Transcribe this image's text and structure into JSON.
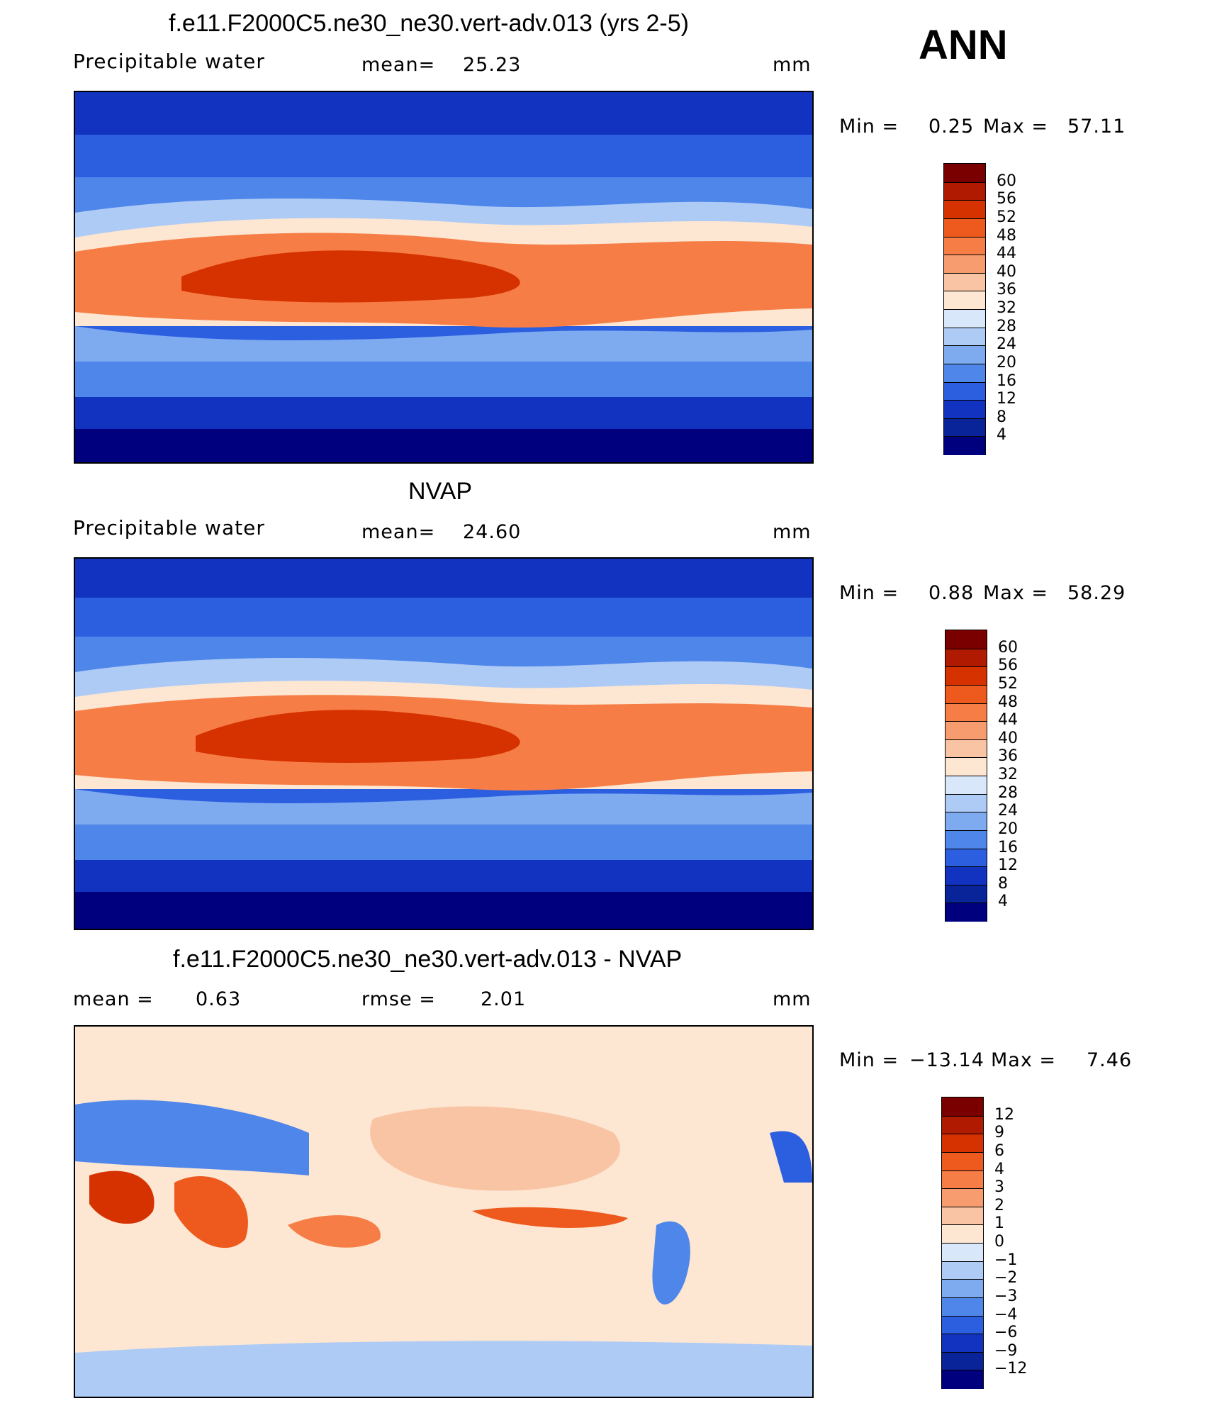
{
  "season": "ANN",
  "panels": [
    {
      "id": "model",
      "title": "f.e11.F2000C5.ne30_ne30.vert-adv.013 (yrs 2-5)",
      "left_label": "Precipitable  water",
      "stat_label": "mean=",
      "stat_value": "25.23",
      "unit": "mm",
      "min_label": "Min  =",
      "min_value": "0.25",
      "max_label": "Max  =",
      "max_value": "57.11",
      "colorbar": {
        "labels": [
          "60",
          "56",
          "52",
          "48",
          "44",
          "40",
          "36",
          "32",
          "28",
          "24",
          "20",
          "16",
          "12",
          "8",
          "4"
        ],
        "colors": [
          "#7a0000",
          "#b01a00",
          "#d63200",
          "#ee5a1e",
          "#f67e46",
          "#f79c6e",
          "#f9c4a4",
          "#fde6d2",
          "#d8e8fa",
          "#aecbf5",
          "#7eaaf0",
          "#4f86ea",
          "#2c5fe0",
          "#1232c0",
          "#082498",
          "#00007e"
        ]
      }
    },
    {
      "id": "obs",
      "title": "NVAP",
      "left_label": "Precipitable  water",
      "stat_label": "mean=",
      "stat_value": "24.60",
      "unit": "mm",
      "min_label": "Min  =",
      "min_value": "0.88",
      "max_label": "Max  =",
      "max_value": "58.29",
      "colorbar": {
        "labels": [
          "60",
          "56",
          "52",
          "48",
          "44",
          "40",
          "36",
          "32",
          "28",
          "24",
          "20",
          "16",
          "12",
          "8",
          "4"
        ],
        "colors": [
          "#7a0000",
          "#b01a00",
          "#d63200",
          "#ee5a1e",
          "#f67e46",
          "#f79c6e",
          "#f9c4a4",
          "#fde6d2",
          "#d8e8fa",
          "#aecbf5",
          "#7eaaf0",
          "#4f86ea",
          "#2c5fe0",
          "#1232c0",
          "#082498",
          "#00007e"
        ]
      }
    },
    {
      "id": "diff",
      "title": "f.e11.F2000C5.ne30_ne30.vert-adv.013 - NVAP",
      "left_label": "mean  =",
      "left_value": "0.63",
      "stat_label": "rmse  =",
      "stat_value": "2.01",
      "unit": "mm",
      "min_label": "Min  =",
      "min_value": "−13.14",
      "max_label": "Max  =",
      "max_value": "7.46",
      "colorbar": {
        "labels": [
          "12",
          "9",
          "6",
          "4",
          "3",
          "2",
          "1",
          "0",
          "−1",
          "−2",
          "−3",
          "−4",
          "−6",
          "−9",
          "−12"
        ],
        "colors": [
          "#7a0000",
          "#b01a00",
          "#d63200",
          "#ee5a1e",
          "#f67e46",
          "#f79c6e",
          "#f9c4a4",
          "#fde6d2",
          "#d8e8fa",
          "#aecbf5",
          "#7eaaf0",
          "#4f86ea",
          "#2c5fe0",
          "#1232c0",
          "#082498",
          "#00007e"
        ]
      }
    }
  ],
  "chart_data": [
    {
      "type": "heatmap",
      "title": "f.e11.F2000C5.ne30_ne30.vert-adv.013 (yrs 2-5)",
      "variable": "Precipitable water",
      "units": "mm",
      "mean": 25.23,
      "min": 0.25,
      "max": 57.11,
      "contour_levels": [
        4,
        8,
        12,
        16,
        20,
        24,
        28,
        32,
        36,
        40,
        44,
        48,
        52,
        56,
        60
      ]
    },
    {
      "type": "heatmap",
      "title": "NVAP",
      "variable": "Precipitable water",
      "units": "mm",
      "mean": 24.6,
      "min": 0.88,
      "max": 58.29,
      "contour_levels": [
        4,
        8,
        12,
        16,
        20,
        24,
        28,
        32,
        36,
        40,
        44,
        48,
        52,
        56,
        60
      ]
    },
    {
      "type": "heatmap",
      "title": "f.e11.F2000C5.ne30_ne30.vert-adv.013 - NVAP",
      "units": "mm",
      "mean": 0.63,
      "rmse": 2.01,
      "min": -13.14,
      "max": 7.46,
      "contour_levels": [
        -12,
        -9,
        -6,
        -4,
        -3,
        -2,
        -1,
        0,
        1,
        2,
        3,
        4,
        6,
        9,
        12
      ]
    }
  ]
}
